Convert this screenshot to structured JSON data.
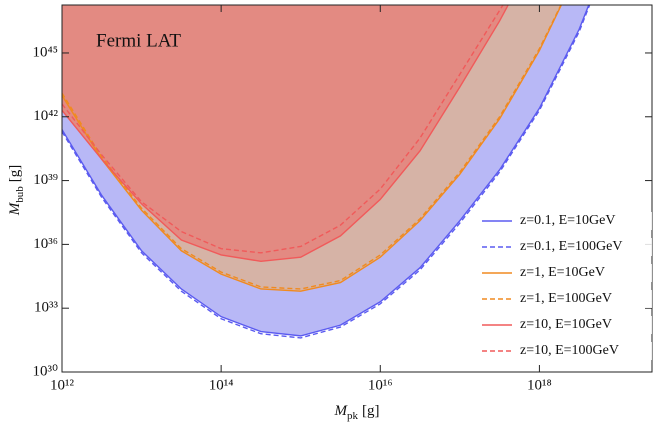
{
  "chart_data": {
    "type": "line",
    "log_x": true,
    "log_y": true,
    "annotation": "Fermi LAT",
    "x_label": {
      "symbol": "M",
      "subscript": "pk",
      "unit": "[g]"
    },
    "y_label": {
      "symbol": "M",
      "subscript": "bub",
      "unit": "[g]"
    },
    "xlim": [
      1000000000000.0,
      2.6e+19
    ],
    "ylim": [
      1e+30,
      1.8e+47
    ],
    "xticks": [
      {
        "value": 1000000000000.0,
        "label": "10¹²"
      },
      {
        "value": 100000000000000.0,
        "label": "10¹⁴"
      },
      {
        "value": 1e+16,
        "label": "10¹⁶"
      },
      {
        "value": 1e+18,
        "label": "10¹⁸"
      }
    ],
    "yticks": [
      {
        "value": 1e+30,
        "label": "10³⁰"
      },
      {
        "value": 1e+33,
        "label": "10³³"
      },
      {
        "value": 1e+36,
        "label": "10³⁶"
      },
      {
        "value": 1e+39,
        "label": "10³⁹"
      },
      {
        "value": 1e+42,
        "label": "10⁴²"
      },
      {
        "value": 1e+45,
        "label": "10⁴⁵"
      }
    ],
    "legend": "lower right",
    "series": [
      {
        "name": "z=0.1, E=10GeV",
        "color": "#5b5bf0",
        "fill": "#b8b8f6",
        "dashed": false,
        "x": [
          1000000000000.0,
          3160000000000.0,
          10000000000000.0,
          31600000000000.0,
          100000000000000.0,
          316000000000000.0,
          1000000000000000.0,
          3160000000000000.0,
          1e+16,
          3.16e+16,
          1e+17,
          3.16e+17,
          1e+18,
          3.16e+18,
          5e+18
        ],
        "values": [
          2.5e+41,
          2e+38,
          5e+35,
          8e+33,
          4e+32,
          8e+31,
          5e+31,
          1.6e+32,
          2e+33,
          8e+34,
          1.3e+37,
          3.2e+39,
          2.5e+42,
          1.3e+46,
          1e+48
        ]
      },
      {
        "name": "z=0.1, E=100GeV",
        "color": "#5b5bf0",
        "dashed": true,
        "x": [
          1000000000000.0,
          3160000000000.0,
          10000000000000.0,
          31600000000000.0,
          100000000000000.0,
          316000000000000.0,
          1000000000000000.0,
          3160000000000000.0,
          1e+16,
          3.16e+16,
          1e+17,
          3.16e+17,
          1e+18,
          3.16e+18,
          5e+18
        ],
        "values": [
          2e+41,
          1.6e+38,
          4e+35,
          6.3e+33,
          3.2e+32,
          6.3e+31,
          4e+31,
          1.3e+32,
          1.6e+33,
          6.3e+34,
          1e+37,
          2.5e+39,
          2e+42,
          1e+46,
          8e+47
        ]
      },
      {
        "name": "z=1, E=10GeV",
        "color": "#f08a20",
        "fill": "#d6b3a6",
        "dashed": false,
        "x": [
          1000000000000.0,
          3160000000000.0,
          10000000000000.0,
          31600000000000.0,
          100000000000000.0,
          316000000000000.0,
          1000000000000000.0,
          3160000000000000.0,
          1e+16,
          3.16e+16,
          1e+17,
          3.16e+17,
          1e+18,
          3.16e+18
        ],
        "values": [
          1e+43,
          1e+40,
          4e+37,
          5e+35,
          4e+34,
          8e+33,
          6.3e+33,
          1.6e+34,
          2.5e+35,
          1.3e+37,
          2e+39,
          8e+41,
          1.3e+45,
          1e+49
        ]
      },
      {
        "name": "z=1, E=100GeV",
        "color": "#f08a20",
        "dashed": true,
        "x": [
          1000000000000.0,
          3160000000000.0,
          10000000000000.0,
          31600000000000.0,
          100000000000000.0,
          316000000000000.0,
          1000000000000000.0,
          3160000000000000.0,
          1e+16,
          3.16e+16,
          1e+17,
          3.16e+17,
          1e+18,
          3.16e+18
        ],
        "values": [
          1.3e+43,
          1.3e+40,
          5e+37,
          6.3e+35,
          5e+34,
          1e+34,
          8e+33,
          2e+34,
          3.2e+35,
          1.6e+37,
          2.5e+39,
          1e+42,
          1.6e+45,
          1e+49
        ]
      },
      {
        "name": "z=10, E=10GeV",
        "color": "#f05a5a",
        "fill": "#e38a82",
        "dashed": false,
        "x": [
          1000000000000.0,
          3160000000000.0,
          10000000000000.0,
          31600000000000.0,
          100000000000000.0,
          316000000000000.0,
          1000000000000000.0,
          3160000000000000.0,
          1e+16,
          3.16e+16,
          1e+17,
          3.16e+17,
          1e+18
        ],
        "values": [
          2e+42,
          1e+40,
          8e+37,
          1.6e+36,
          3.2e+35,
          1.6e+35,
          2.5e+35,
          2.5e+36,
          1.3e+38,
          2.5e+40,
          2.5e+43,
          3.2e+46,
          1e+50
        ]
      },
      {
        "name": "z=10, E=100GeV",
        "color": "#f05a5a",
        "dashed": true,
        "x": [
          1000000000000.0,
          3160000000000.0,
          10000000000000.0,
          31600000000000.0,
          100000000000000.0,
          316000000000000.0,
          1000000000000000.0,
          3160000000000000.0,
          1e+16,
          3.16e+16,
          1e+17,
          3.16e+17,
          1e+18
        ],
        "values": [
          4e+42,
          1.6e+40,
          1e+38,
          4e+36,
          6.3e+35,
          4e+35,
          8e+35,
          8e+36,
          4e+38,
          1e+41,
          1e+44,
          1e+47,
          1e+50
        ]
      }
    ]
  }
}
